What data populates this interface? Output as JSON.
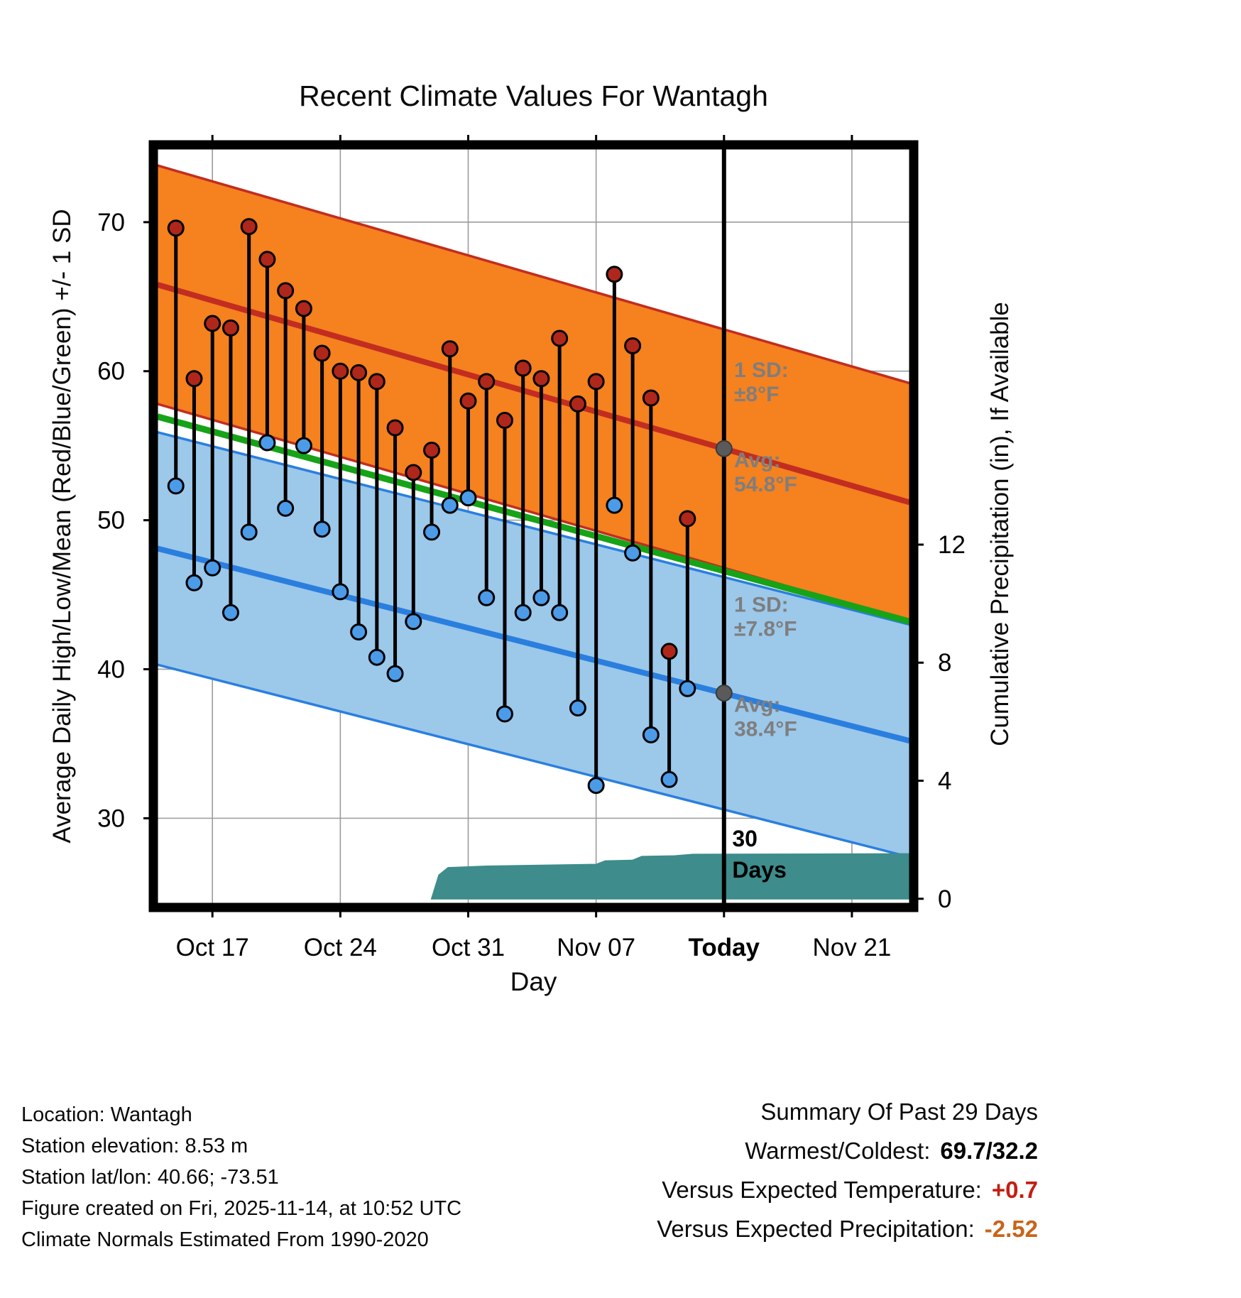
{
  "chart_data": {
    "type": "line",
    "title": "Recent Climate Values For Wantagh",
    "xlabel": "Day",
    "ylabel_left": "Average Daily High/Low/Mean (Red/Blue/Green) +/- 1 SD",
    "ylabel_right": "Cumulative Precipitation (in), If Available",
    "x_axis": {
      "lim": [
        0,
        41.15
      ],
      "ticks": [
        {
          "day": 3,
          "label": "Oct 17"
        },
        {
          "day": 10,
          "label": "Oct 24"
        },
        {
          "day": 17,
          "label": "Oct 31"
        },
        {
          "day": 24,
          "label": "Nov 07"
        },
        {
          "day": 31,
          "label": "Today",
          "bold": true
        },
        {
          "day": 38,
          "label": "Nov 21"
        }
      ]
    },
    "temp_axis": {
      "lim": [
        24.3,
        74.9
      ],
      "ticks": [
        30,
        40,
        50,
        60,
        70
      ]
    },
    "precip_axis": {
      "lim": [
        -0.15,
        25.4
      ],
      "ticks": [
        0,
        4,
        8,
        12
      ]
    },
    "today_day": 31,
    "climatology": {
      "high": {
        "days": [
          0,
          41.15
        ],
        "values": [
          65.8,
          51.2
        ],
        "sd": 8,
        "band_color": "#F5811F",
        "line_color": "#C22D20"
      },
      "low": {
        "days": [
          0,
          41.15
        ],
        "values": [
          48.1,
          35.2
        ],
        "sd": 7.8,
        "band_color": "#9CC8EA",
        "line_color": "#2A7FDE"
      },
      "mean": {
        "days": [
          0,
          41.15
        ],
        "values": [
          56.95,
          43.2
        ],
        "line_color": "#17A317"
      }
    },
    "daily": {
      "high_color": "#AF271B",
      "low_color": "#4C9BE8",
      "days": [
        1,
        2,
        3,
        4,
        5,
        6,
        7,
        8,
        9,
        10,
        11,
        12,
        13,
        14,
        15,
        16,
        17,
        18,
        19,
        20,
        21,
        22,
        23,
        24,
        25,
        26,
        27,
        28,
        29
      ],
      "highs": [
        69.6,
        59.5,
        63.2,
        62.9,
        69.7,
        67.5,
        65.4,
        64.2,
        61.2,
        60.0,
        59.9,
        59.3,
        56.2,
        53.2,
        54.7,
        61.5,
        58.0,
        59.3,
        56.7,
        60.2,
        59.5,
        62.2,
        57.8,
        59.3,
        66.5,
        61.7,
        58.2,
        41.2,
        50.1
      ],
      "lows": [
        52.3,
        45.8,
        46.8,
        43.8,
        49.2,
        55.2,
        50.8,
        55.0,
        49.4,
        45.2,
        42.5,
        40.8,
        39.7,
        43.2,
        49.2,
        51.0,
        51.5,
        44.8,
        37.0,
        43.8,
        44.8,
        43.8,
        37.4,
        32.2,
        51.0,
        47.8,
        35.6,
        32.6,
        38.7
      ]
    },
    "precip_cumulative": {
      "color": "#3E8C8C",
      "points": [
        [
          15.0,
          0
        ],
        [
          15.4,
          0.8
        ],
        [
          15.9,
          1.05
        ],
        [
          18,
          1.1
        ],
        [
          21,
          1.13
        ],
        [
          24.0,
          1.16
        ],
        [
          24.5,
          1.28
        ],
        [
          26.0,
          1.3
        ],
        [
          26.5,
          1.43
        ],
        [
          28.3,
          1.45
        ],
        [
          29.3,
          1.5
        ],
        [
          41.15,
          1.52
        ]
      ]
    },
    "avg_markers": [
      {
        "day": 31,
        "temp": 54.8,
        "color": "#5A5A5A"
      },
      {
        "day": 31,
        "temp": 38.4,
        "color": "#5A5A5A"
      }
    ],
    "annotations": [
      {
        "day": 31.55,
        "temp": 59.6,
        "lines": [
          "1 SD:",
          "±8°F"
        ],
        "color": "#7E7E7E",
        "size": 30,
        "gap": 34,
        "bold": true
      },
      {
        "day": 31.55,
        "temp": 53.55,
        "lines": [
          "Avg:",
          "54.8°F"
        ],
        "color": "#7E7E7E",
        "size": 30,
        "gap": 34,
        "bold": true
      },
      {
        "day": 31.55,
        "temp": 43.85,
        "lines": [
          "1 SD:",
          "±7.8°F"
        ],
        "color": "#7E7E7E",
        "size": 30,
        "gap": 34,
        "bold": true
      },
      {
        "day": 31.55,
        "temp": 37.15,
        "lines": [
          "Avg:",
          "38.4°F"
        ],
        "color": "#7E7E7E",
        "size": 30,
        "gap": 34,
        "bold": true
      },
      {
        "day": 31.45,
        "temp": 28.1,
        "lines": [
          "30",
          "Days"
        ],
        "color": "#000000",
        "size": 32,
        "gap": 44,
        "bold": true
      }
    ],
    "grid": true,
    "legend": "none"
  },
  "footer": {
    "left_lines": [
      "Location: Wantagh",
      "Station elevation: 8.53 m",
      "Station lat/lon: 40.66; -73.51",
      "Figure created on Fri, 2025-11-14, at 10:52 UTC",
      "Climate Normals Estimated From 1990-2020"
    ]
  },
  "summary": {
    "title": "Summary Of Past 29 Days",
    "rows": [
      {
        "label": "Warmest/Coldest:",
        "value": "69.7/32.2",
        "color": "#000000"
      },
      {
        "label": "Versus Expected Temperature:",
        "value": "+0.7",
        "color": "#C41E12"
      },
      {
        "label": "Versus Expected Precipitation:",
        "value": "-2.52",
        "color": "#C8641A"
      }
    ]
  }
}
